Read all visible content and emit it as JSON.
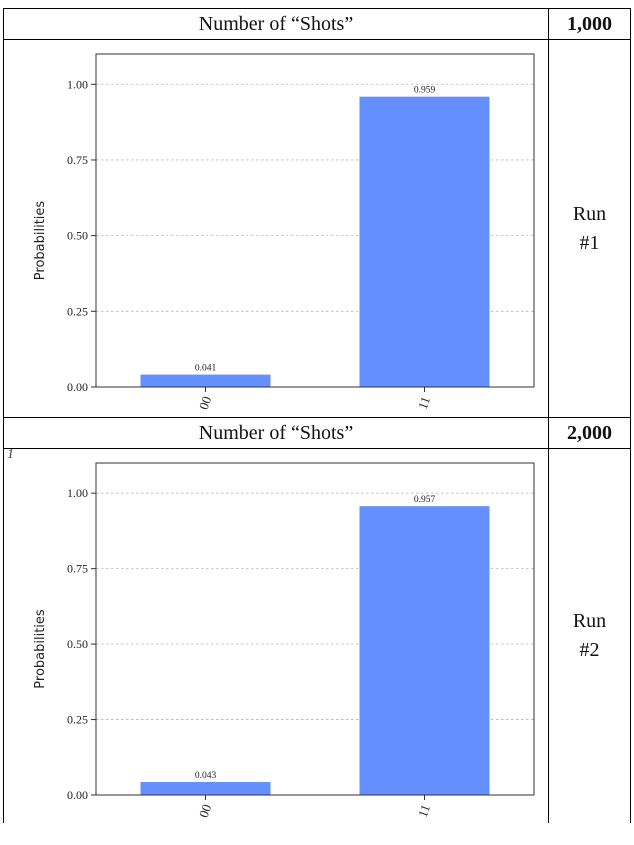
{
  "blocks": [
    {
      "header_label": "Number of “Shots”",
      "shots": "1,000",
      "run_label": "Run",
      "run_number": "#1"
    },
    {
      "header_label": "Number of “Shots”",
      "shots": "2,000",
      "run_label": "Run",
      "run_number": "#2"
    }
  ],
  "stray_mark": "1",
  "chart_data": [
    {
      "type": "bar",
      "categories": [
        "00",
        "11"
      ],
      "values": [
        0.041,
        0.959
      ],
      "data_labels": [
        "0.041",
        "0.959"
      ],
      "ylabel": "Probabilities",
      "xlabel": "",
      "yticks": [
        "0.00",
        "0.25",
        "0.50",
        "0.75",
        "1.00"
      ],
      "ylim": [
        0,
        1.1
      ],
      "grid": "horizontal-dashed",
      "bar_color": "#648fff"
    },
    {
      "type": "bar",
      "categories": [
        "00",
        "11"
      ],
      "values": [
        0.043,
        0.957
      ],
      "data_labels": [
        "0.043",
        "0.957"
      ],
      "ylabel": "Probabilities",
      "xlabel": "",
      "yticks": [
        "0.00",
        "0.25",
        "0.50",
        "0.75",
        "1.00"
      ],
      "ylim": [
        0,
        1.1
      ],
      "grid": "horizontal-dashed",
      "bar_color": "#648fff"
    }
  ]
}
